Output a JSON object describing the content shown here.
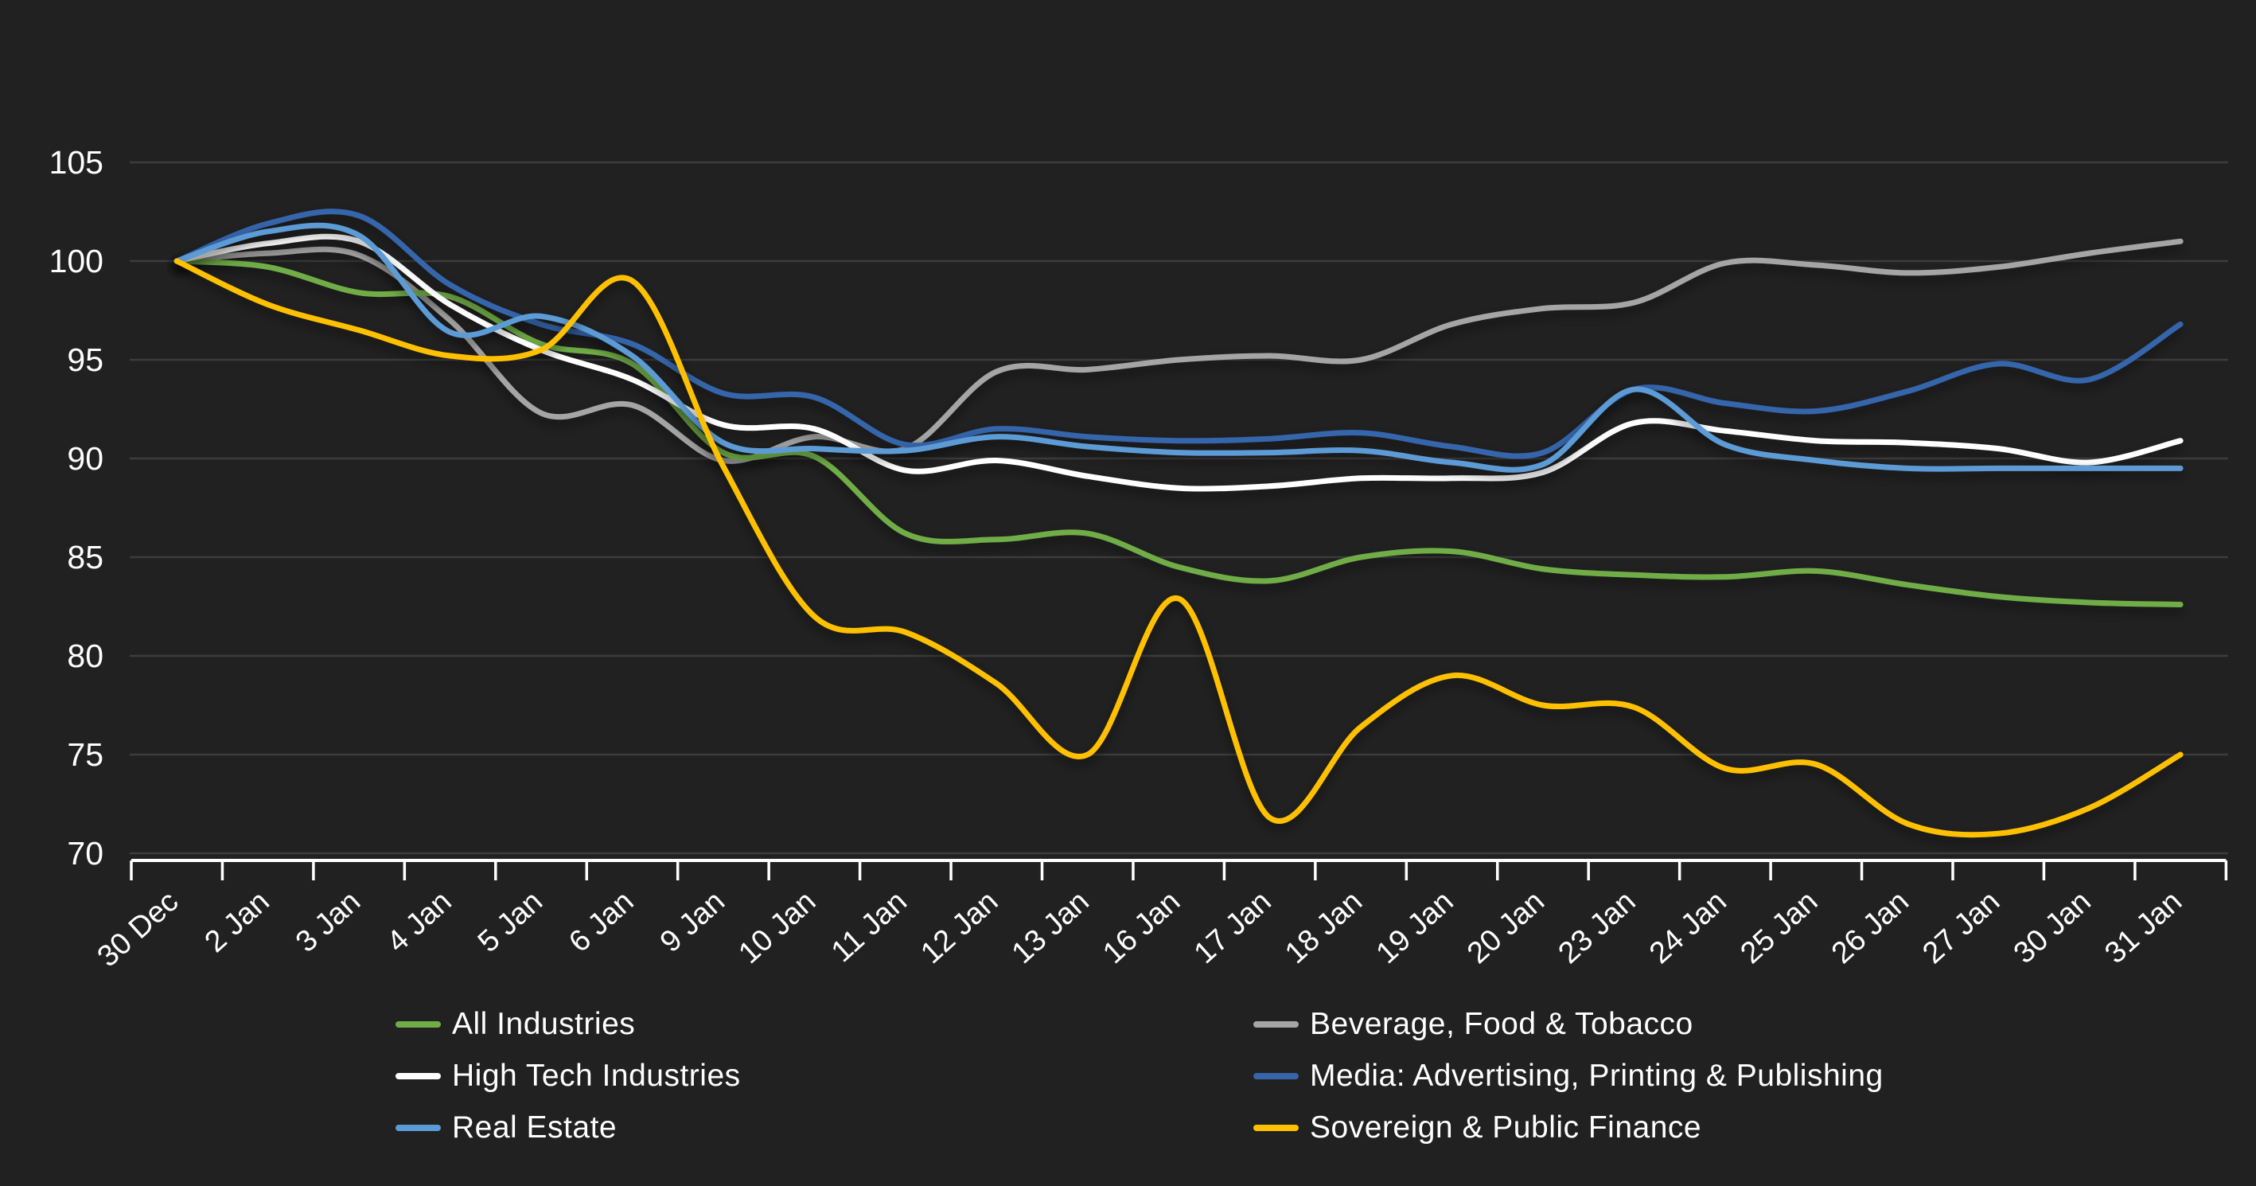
{
  "colors": {
    "background": "#212121",
    "gridline": "#3c3c3c",
    "axis": "#ffffff",
    "text": "#ffffff"
  },
  "chart_data": {
    "type": "line",
    "title": "",
    "xlabel": "",
    "ylabel": "",
    "x_labels": [
      "30 Dec",
      "2 Jan",
      "3 Jan",
      "4 Jan",
      "5 Jan",
      "6 Jan",
      "9 Jan",
      "10 Jan",
      "11 Jan",
      "12 Jan",
      "13 Jan",
      "16 Jan",
      "17 Jan",
      "18 Jan",
      "19 Jan",
      "20 Jan",
      "23 Jan",
      "24 Jan",
      "25 Jan",
      "26 Jan",
      "27 Jan",
      "30 Jan",
      "31 Jan"
    ],
    "y_ticks": [
      105,
      100,
      95,
      90,
      85,
      80,
      75,
      70
    ],
    "ylim": [
      70,
      105
    ],
    "grid": "horizontal",
    "line_style": "smooth",
    "legend_position": "bottom-two-columns",
    "series": [
      {
        "name": "All Industries",
        "color": "#70ad47",
        "values": [
          100,
          99.7,
          98.4,
          98.2,
          95.8,
          94.8,
          90.3,
          90.1,
          86.2,
          85.9,
          86.2,
          84.5,
          83.8,
          85.0,
          85.3,
          84.4,
          84.1,
          84.0,
          84.3,
          83.6,
          83.0,
          82.7,
          82.6
        ]
      },
      {
        "name": "Beverage, Food & Tobacco",
        "color": "#a5a5a5",
        "values": [
          100,
          100.4,
          100.3,
          97.0,
          92.3,
          92.7,
          89.9,
          91.1,
          90.5,
          94.4,
          94.5,
          95.0,
          95.2,
          95.0,
          96.8,
          97.6,
          97.9,
          99.9,
          99.8,
          99.4,
          99.7,
          100.4,
          101.0
        ]
      },
      {
        "name": "High Tech Industries",
        "color": "#ffffff",
        "values": [
          100,
          100.9,
          101.0,
          97.8,
          95.5,
          94.0,
          91.7,
          91.5,
          89.4,
          89.9,
          89.1,
          88.5,
          88.6,
          89.0,
          89.0,
          89.3,
          91.8,
          91.4,
          90.9,
          90.8,
          90.5,
          89.8,
          90.9
        ]
      },
      {
        "name": "Media: Advertising, Printing & Publishing",
        "color": "#3565ab",
        "values": [
          100,
          101.9,
          102.3,
          98.8,
          96.8,
          95.8,
          93.3,
          93.1,
          90.7,
          91.5,
          91.1,
          90.9,
          91.0,
          91.3,
          90.6,
          90.3,
          93.5,
          92.8,
          92.4,
          93.4,
          94.8,
          94.0,
          96.8
        ]
      },
      {
        "name": "Real Estate",
        "color": "#5b9bd5",
        "values": [
          100,
          101.5,
          101.3,
          96.4,
          97.2,
          95.2,
          90.8,
          90.5,
          90.4,
          91.1,
          90.6,
          90.3,
          90.3,
          90.4,
          89.8,
          89.7,
          93.5,
          90.7,
          89.9,
          89.5,
          89.5,
          89.5,
          89.5
        ]
      },
      {
        "name": "Sovereign & Public Finance",
        "color": "#ffc000",
        "values": [
          100,
          97.8,
          96.5,
          95.2,
          95.5,
          99.0,
          89.6,
          82.0,
          81.2,
          78.6,
          75.0,
          82.9,
          71.8,
          76.4,
          79.0,
          77.5,
          77.4,
          74.3,
          74.5,
          71.5,
          71.0,
          72.3,
          75.0
        ]
      }
    ]
  }
}
